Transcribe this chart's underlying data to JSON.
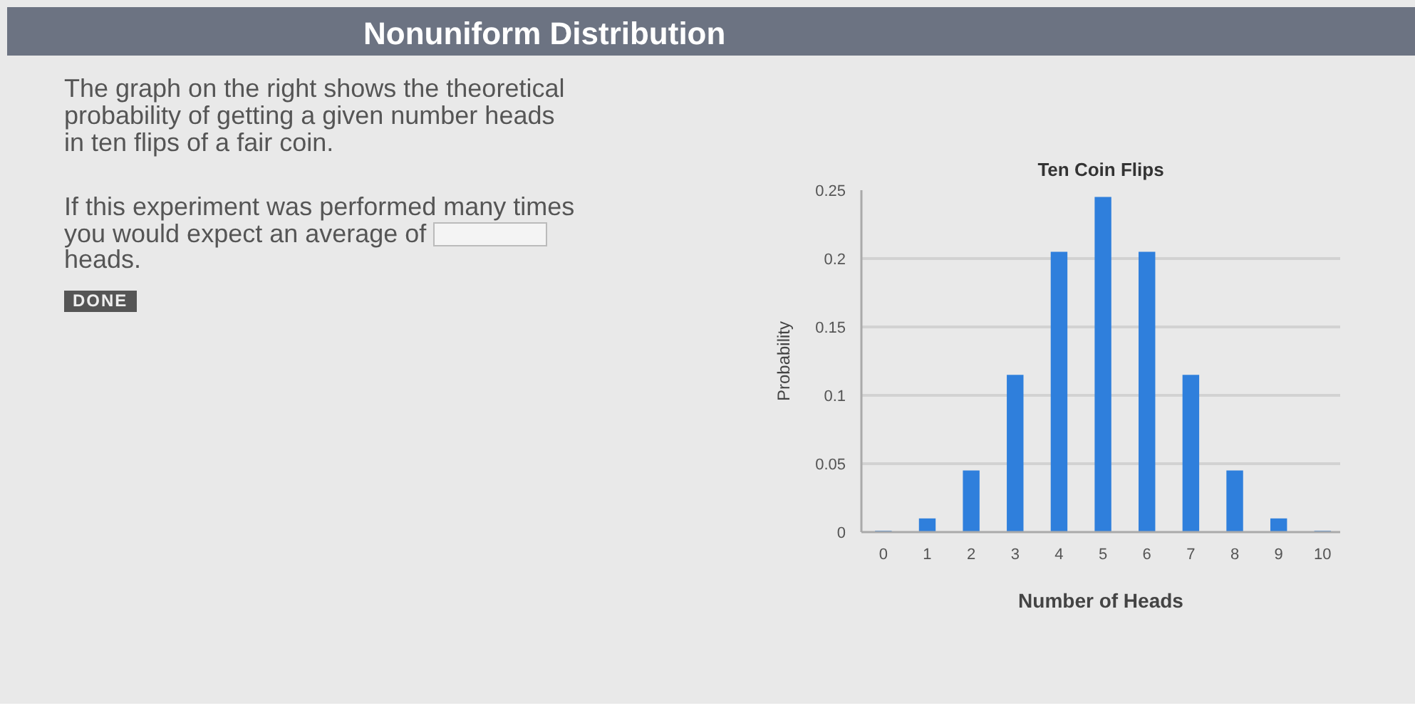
{
  "chart_data": {
    "type": "bar",
    "title": "Ten Coin Flips",
    "xlabel": "Number of Heads",
    "ylabel": "Probability",
    "x": [
      0,
      1,
      2,
      3,
      4,
      5,
      6,
      7,
      8,
      9,
      10
    ],
    "values": [
      0.001,
      0.01,
      0.045,
      0.115,
      0.205,
      0.245,
      0.205,
      0.115,
      0.045,
      0.01,
      0.001
    ],
    "color": "#2f7fdc",
    "xlim": [
      -0.5,
      10.4
    ],
    "xticks": [
      0,
      1,
      2,
      3,
      4,
      5,
      6,
      7,
      8,
      9,
      10
    ],
    "ylim": [
      0,
      0.25
    ],
    "yticks": [
      0,
      0.05,
      0.1,
      0.15,
      0.2,
      0.25
    ],
    "grid": "y",
    "annotations": [
      "Nonuniform Distribution",
      "The graph on the right shows the theoretical probability of getting a given number heads in ten flips of a fair coin.",
      "If this experiment was performed many times you would expect an average of",
      "heads.",
      "DONE"
    ]
  }
}
